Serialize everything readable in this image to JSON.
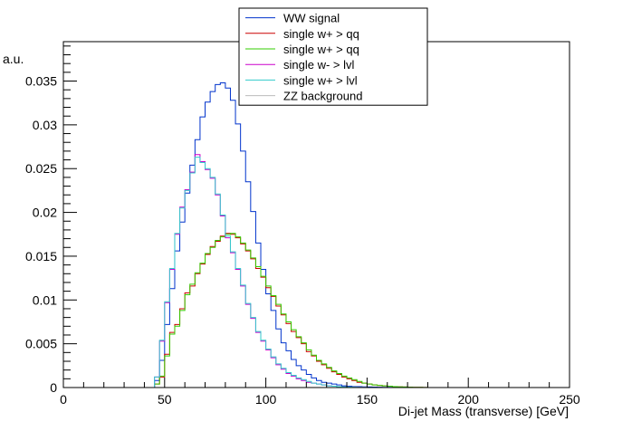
{
  "chart_data": {
    "type": "line",
    "style": "step-histogram",
    "xlabel": "Di-jet Mass (transverse) [GeV]",
    "ylabel": "a.u.",
    "xlim": [
      0,
      250
    ],
    "ylim": [
      0,
      0.0395
    ],
    "grid": false,
    "legend_position": "top-center",
    "bin_width": 2.5,
    "x_ticks": [
      0,
      50,
      100,
      150,
      200,
      250
    ],
    "y_ticks": [
      0,
      0.005,
      0.01,
      0.015,
      0.02,
      0.025,
      0.03,
      0.035
    ],
    "x_tick_labels": [
      "0",
      "50",
      "100",
      "150",
      "200",
      "250"
    ],
    "y_tick_labels": [
      "0",
      "0.005",
      "0.01",
      "0.015",
      "0.02",
      "0.025",
      "0.03",
      "0.035"
    ],
    "series": [
      {
        "name": "WW signal",
        "color": "#0033cc",
        "x": [
          45,
          47.5,
          50,
          52.5,
          55,
          57.5,
          60,
          62.5,
          65,
          67.5,
          70,
          72.5,
          75,
          77.5,
          80,
          82.5,
          85,
          87.5,
          90,
          92.5,
          95,
          97.5,
          100,
          102.5,
          105,
          107.5,
          110,
          112.5,
          115,
          117.5,
          120,
          122.5,
          125,
          127.5,
          130,
          132.5,
          135,
          137.5,
          140,
          142.5,
          145,
          147.5,
          150,
          152.5,
          155,
          157.5,
          160,
          162.5,
          165
        ],
        "values": [
          0.0008,
          0.0031,
          0.0072,
          0.0113,
          0.0156,
          0.0189,
          0.0222,
          0.0254,
          0.0283,
          0.0309,
          0.0326,
          0.0338,
          0.0346,
          0.0348,
          0.0342,
          0.0328,
          0.0301,
          0.027,
          0.0235,
          0.0201,
          0.0165,
          0.0135,
          0.0107,
          0.0088,
          0.0067,
          0.0051,
          0.0042,
          0.0032,
          0.0025,
          0.002,
          0.0015,
          0.0011,
          0.0008,
          0.0006,
          0.0005,
          0.0004,
          0.0003,
          0.0002,
          0.00015,
          0.0001,
          0.0001,
          8e-05,
          6e-05,
          5e-05,
          4e-05,
          3e-05,
          2e-05,
          1e-05,
          0
        ]
      },
      {
        "name": "single w+ > qq",
        "color": "#cc0000",
        "x": [
          45,
          47.5,
          50,
          52.5,
          55,
          57.5,
          60,
          62.5,
          65,
          67.5,
          70,
          72.5,
          75,
          77.5,
          80,
          82.5,
          85,
          87.5,
          90,
          92.5,
          95,
          97.5,
          100,
          102.5,
          105,
          107.5,
          110,
          112.5,
          115,
          117.5,
          120,
          122.5,
          125,
          127.5,
          130,
          132.5,
          135,
          137.5,
          140,
          142.5,
          145,
          147.5,
          150,
          152.5,
          155,
          157.5,
          160,
          162.5,
          165,
          167.5,
          170,
          172.5,
          175,
          177.5,
          180
        ],
        "values": [
          0.0004,
          0.0012,
          0.0038,
          0.0063,
          0.0072,
          0.009,
          0.0108,
          0.0116,
          0.013,
          0.0141,
          0.0152,
          0.0161,
          0.0167,
          0.0173,
          0.0176,
          0.0175,
          0.0171,
          0.0164,
          0.0156,
          0.0147,
          0.0136,
          0.0126,
          0.0114,
          0.0104,
          0.0093,
          0.0083,
          0.0073,
          0.0064,
          0.0057,
          0.005,
          0.0041,
          0.0036,
          0.003,
          0.0026,
          0.0022,
          0.0018,
          0.0015,
          0.0012,
          0.001,
          0.0008,
          0.0006,
          0.0005,
          0.0004,
          0.0003,
          0.00025,
          0.0002,
          0.00015,
          0.0001,
          8e-05,
          6e-05,
          4e-05,
          3e-05,
          2e-05,
          1e-05,
          0
        ]
      },
      {
        "name": "single w+ > qq",
        "color": "#33cc00",
        "x": [
          45,
          47.5,
          50,
          52.5,
          55,
          57.5,
          60,
          62.5,
          65,
          67.5,
          70,
          72.5,
          75,
          77.5,
          80,
          82.5,
          85,
          87.5,
          90,
          92.5,
          95,
          97.5,
          100,
          102.5,
          105,
          107.5,
          110,
          112.5,
          115,
          117.5,
          120,
          122.5,
          125,
          127.5,
          130,
          132.5,
          135,
          137.5,
          140,
          142.5,
          145,
          147.5,
          150,
          152.5,
          155,
          157.5,
          160,
          162.5,
          165,
          167.5,
          170,
          172.5,
          175,
          177.5,
          180
        ],
        "values": [
          0.0004,
          0.0013,
          0.0036,
          0.0061,
          0.007,
          0.0088,
          0.0106,
          0.0118,
          0.0131,
          0.0142,
          0.0153,
          0.016,
          0.0168,
          0.0172,
          0.0175,
          0.0176,
          0.0172,
          0.0165,
          0.0157,
          0.0148,
          0.0138,
          0.0127,
          0.0116,
          0.0105,
          0.0095,
          0.0084,
          0.0075,
          0.0066,
          0.0058,
          0.0051,
          0.0043,
          0.0037,
          0.0031,
          0.0027,
          0.0023,
          0.0019,
          0.0016,
          0.0013,
          0.0011,
          0.0009,
          0.0007,
          0.0005,
          0.0004,
          0.0003,
          0.00025,
          0.0002,
          0.00015,
          0.0001,
          8e-05,
          6e-05,
          4e-05,
          3e-05,
          2e-05,
          1e-05,
          0
        ]
      },
      {
        "name": "single w- > lvl",
        "color": "#cc00cc",
        "x": [
          45,
          47.5,
          50,
          52.5,
          55,
          57.5,
          60,
          62.5,
          65,
          67.5,
          70,
          72.5,
          75,
          77.5,
          80,
          82.5,
          85,
          87.5,
          90,
          92.5,
          95,
          97.5,
          100,
          102.5,
          105,
          107.5,
          110,
          112.5,
          115,
          117.5,
          120,
          122.5,
          125,
          127.5,
          130,
          132.5,
          135,
          137.5,
          140,
          142.5,
          145,
          147.5,
          150
        ],
        "values": [
          0.0012,
          0.0053,
          0.0097,
          0.0135,
          0.0175,
          0.0206,
          0.0226,
          0.0246,
          0.0266,
          0.0258,
          0.0249,
          0.0239,
          0.022,
          0.0196,
          0.0171,
          0.0154,
          0.0135,
          0.0116,
          0.0095,
          0.0079,
          0.0063,
          0.0053,
          0.0043,
          0.0034,
          0.0026,
          0.0021,
          0.0016,
          0.0013,
          0.001,
          0.0008,
          0.0006,
          0.0005,
          0.0004,
          0.0003,
          0.0002,
          0.00015,
          0.0001,
          8e-05,
          6e-05,
          4e-05,
          3e-05,
          2e-05,
          0
        ]
      },
      {
        "name": "single w+ > lvl",
        "color": "#33cccc",
        "x": [
          45,
          47.5,
          50,
          52.5,
          55,
          57.5,
          60,
          62.5,
          65,
          67.5,
          70,
          72.5,
          75,
          77.5,
          80,
          82.5,
          85,
          87.5,
          90,
          92.5,
          95,
          97.5,
          100,
          102.5,
          105,
          107.5,
          110,
          112.5,
          115,
          117.5,
          120,
          122.5,
          125,
          127.5,
          130,
          132.5,
          135,
          137.5,
          140,
          142.5,
          145,
          147.5,
          150
        ],
        "values": [
          0.0012,
          0.0054,
          0.0098,
          0.0136,
          0.0176,
          0.0205,
          0.0225,
          0.0245,
          0.0263,
          0.0257,
          0.025,
          0.024,
          0.0221,
          0.0197,
          0.0173,
          0.0155,
          0.0136,
          0.0117,
          0.0096,
          0.008,
          0.0064,
          0.0054,
          0.0044,
          0.0035,
          0.0027,
          0.0022,
          0.0017,
          0.0014,
          0.0011,
          0.0009,
          0.0007,
          0.0005,
          0.0004,
          0.0003,
          0.0002,
          0.00015,
          0.0001,
          8e-05,
          6e-05,
          4e-05,
          3e-05,
          2e-05,
          0
        ]
      },
      {
        "name": "ZZ background",
        "color": "#bbbbbb",
        "x": [],
        "values": []
      }
    ]
  }
}
